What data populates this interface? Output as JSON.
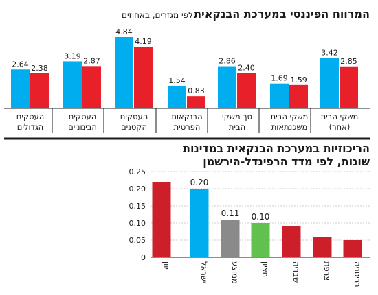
{
  "chart_data": [
    {
      "type": "bar",
      "title": "המרווח הפיננסי במערכת הבנקאית",
      "subtitle": "לפי מגזרים, באחוזים",
      "categories": [
        [
          "משקי הבית",
          "(אחר)"
        ],
        [
          "משקי הבית",
          "משכנתאות"
        ],
        [
          "סך משקי",
          "הבית"
        ],
        [
          "הבנקאות",
          "הפרטית"
        ],
        [
          "העסקים",
          "הקטנים"
        ],
        [
          "העסקים",
          "הבינוניים"
        ],
        [
          "העסקים",
          "הגדולים"
        ]
      ],
      "series": [
        {
          "color": "#00aeef",
          "values": [
            3.42,
            1.69,
            2.86,
            1.54,
            4.84,
            3.19,
            2.64
          ]
        },
        {
          "color": "#e8202a",
          "values": [
            2.85,
            1.59,
            2.4,
            0.83,
            4.19,
            2.87,
            2.38
          ]
        }
      ],
      "value_labels": [
        [
          "3.42",
          "1.69",
          "2.86",
          "1.54",
          "4.84",
          "3.19",
          "2.64"
        ],
        [
          "2.85",
          "1.59",
          "2.40",
          "0.83",
          "4.19",
          "2.87",
          "2.38"
        ]
      ],
      "ylim": [
        0,
        5.2
      ]
    },
    {
      "type": "bar",
      "title_lines": [
        "הריכוזיות במערכת הבנקאית במדינות",
        "שונות, לפי מדד הרפינדל-הירשמן"
      ],
      "categories": [
        "יוון",
        "ישראל",
        "ממוצע",
        "חציון",
        "שבדיה",
        "צרפת",
        "בריטניה"
      ],
      "values": [
        0.22,
        0.2,
        0.11,
        0.1,
        0.09,
        0.06,
        0.05
      ],
      "colors": [
        "#cc1f2a",
        "#00aeef",
        "#8a8a8a",
        "#62c04f",
        "#cc1f2a",
        "#cc1f2a",
        "#cc1f2a"
      ],
      "value_labels": [
        "",
        "0.20",
        "0.11",
        "0.10",
        "",
        "",
        ""
      ],
      "yticks": [
        "0",
        "0.05",
        "0.10",
        "0.15",
        "0.20",
        "0.25"
      ],
      "ylim": [
        0,
        0.25
      ],
      "grid": true
    }
  ]
}
